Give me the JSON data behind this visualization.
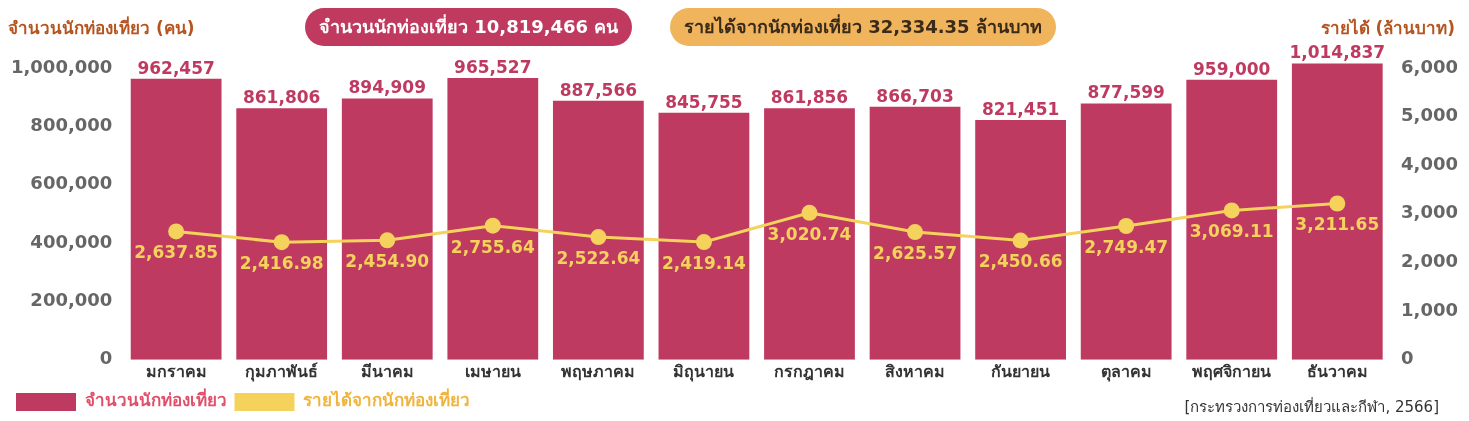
{
  "chart_data": {
    "type": "bar",
    "ylabel": "จำนวนนักท่องเที่ยว (คน)",
    "y2label": "รายได้ (ล้านบาท)",
    "annotations": [
      "จำนวนนักท่องเที่ยว  10,819,466 คน",
      "รายได้จากนักท่องเที่ยว  32,334.35 ล้านบาท",
      "[กระทรวงการท่องเที่ยวและกีฬา, 2566]"
    ],
    "categories": [
      "มกราคม",
      "กุมภาพันธ์",
      "มีนาคม",
      "เมษายน",
      "พฤษภาคม",
      "มิถุนายน",
      "กรกฎาคม",
      "สิงหาคม",
      "กันยายน",
      "ตุลาคม",
      "พฤศจิกายน",
      "ธันวาคม"
    ],
    "series": [
      {
        "name": "จำนวนนักท่องเที่ยว",
        "color": "#bf3a60",
        "values": [
          962457,
          861806,
          894909,
          965527,
          887566,
          845755,
          861856,
          866703,
          821451,
          877599,
          959000,
          1014837
        ],
        "value_labels": [
          "962,457",
          "861,806",
          "894,909",
          "965,527",
          "887,566",
          "845,755",
          "861,856",
          "866,703",
          "821,451",
          "877,599",
          "959,000",
          "1,014,837"
        ]
      },
      {
        "name": "รายได้จากนักท่องเที่ยว",
        "type": "line",
        "axis": "y2",
        "marker": "circle",
        "color": "#f5d25c",
        "values": [
          2637.85,
          2416.98,
          2454.9,
          2755.64,
          2522.64,
          2419.14,
          3020.74,
          2625.57,
          2450.66,
          2749.47,
          3069.11,
          3211.65
        ],
        "value_labels": [
          "2,637.85",
          "2,416.98",
          "2,454.90",
          "2,755.64",
          "2,522.64",
          "2,419.14",
          "3,020.74",
          "2,625.57",
          "2,450.66",
          "2,749.47",
          "3,069.11",
          "3,211.65"
        ]
      }
    ],
    "ylim": [
      0,
      1020000
    ],
    "yticks": [
      0,
      {
        "value": 200000,
        "label": "200,000"
      },
      {
        "value": 400000,
        "label": "400,000"
      },
      {
        "value": 600000,
        "label": "600,000"
      },
      {
        "value": 800000,
        "label": "800,000"
      },
      {
        "value": 1000000,
        "label": "1,000,000"
      }
    ],
    "y2lim": [
      0,
      6120
    ],
    "y2ticks": [
      0,
      {
        "value": 1000,
        "label": "1,000"
      },
      {
        "value": 2000,
        "label": "2,000"
      },
      {
        "value": 3000,
        "label": "3,000"
      },
      {
        "value": 4000,
        "label": "4,000"
      },
      {
        "value": 5000,
        "label": "5,000"
      },
      {
        "value": 6000,
        "label": "6,000"
      }
    ],
    "legend": "bottom left"
  }
}
